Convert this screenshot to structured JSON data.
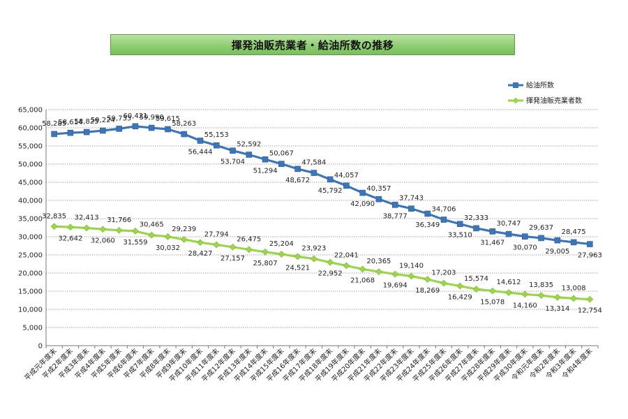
{
  "title": "揮発油販売業者・給油所数の推移",
  "chart_data": {
    "type": "line",
    "title": "揮発油販売業者・給油所数の推移",
    "ylim": [
      0,
      65000
    ],
    "y_ticks": [
      "0",
      "5,000",
      "10,000",
      "15,000",
      "20,000",
      "25,000",
      "30,000",
      "35,000",
      "40,000",
      "45,000",
      "50,000",
      "55,000",
      "60,000",
      "65,000"
    ],
    "grid": true,
    "legend_position": "top-right",
    "categories": [
      "平成元年度末",
      "平成2年度末",
      "平成3年度末",
      "平成4年度末",
      "平成5年度末",
      "平成6年度末",
      "平成7年度末",
      "平成8年度末",
      "平成9年度末",
      "平成10年度末",
      "平成11年度末",
      "平成12年度末",
      "平成13年度末",
      "平成14年度末",
      "平成15年度末",
      "平成16年度末",
      "平成17年度末",
      "平成18年度末",
      "平成19年度末",
      "平成20年度末",
      "平成21年度末",
      "平成22年度末",
      "平成23年度末",
      "平成24年度末",
      "平成25年度末",
      "平成26年度末",
      "平成27年度末",
      "平成28年度末",
      "平成29年度末",
      "平成30年度末",
      "令和元年度末",
      "令和2年度末",
      "令和3年度末",
      "令和4年度末"
    ],
    "series": [
      {
        "name": "給油所数",
        "color": "#3c75b8",
        "marker": "square",
        "values": [
          58285,
          58614,
          58825,
          59224,
          59733,
          60421,
          59990,
          59615,
          58263,
          56444,
          55153,
          53704,
          52592,
          51294,
          50067,
          48672,
          47584,
          45792,
          44057,
          42090,
          40357,
          38777,
          37743,
          36349,
          34706,
          33510,
          32333,
          31467,
          30747,
          30070,
          29637,
          29005,
          28475,
          27963
        ],
        "labels": [
          "58,285",
          "58,614",
          "58,825",
          "59,224",
          "59,733",
          "60,421",
          "59,990",
          "59,615",
          "58,263",
          "56,444",
          "55,153",
          "53,704",
          "52,592",
          "51,294",
          "50,067",
          "48,672",
          "47,584",
          "45,792",
          "44,057",
          "42,090",
          "40,357",
          "38,777",
          "37,743",
          "36,349",
          "34,706",
          "33,510",
          "32,333",
          "31,467",
          "30,747",
          "30,070",
          "29,637",
          "29,005",
          "28,475",
          "27,963"
        ]
      },
      {
        "name": "揮発油販売業者数",
        "color": "#9bd54a",
        "marker": "diamond",
        "values": [
          32835,
          32642,
          32413,
          32060,
          31766,
          31559,
          30465,
          30032,
          29239,
          28427,
          27794,
          27157,
          26475,
          25807,
          25204,
          24521,
          23923,
          22952,
          22041,
          21068,
          20365,
          19694,
          19140,
          18269,
          17203,
          16429,
          15574,
          15078,
          14612,
          14160,
          13835,
          13314,
          13008,
          12754
        ],
        "labels": [
          "32,835",
          "32,642",
          "32,413",
          "32,060",
          "31,766",
          "31,559",
          "30,465",
          "30,032",
          "29,239",
          "28,427",
          "27,794",
          "27,157",
          "26,475",
          "25,807",
          "25,204",
          "24,521",
          "23,923",
          "22,952",
          "22,041",
          "21,068",
          "20,365",
          "19,694",
          "19,140",
          "18,269",
          "17,203",
          "16,429",
          "15,574",
          "15,078",
          "14,612",
          "14,160",
          "13,835",
          "13,314",
          "13,008",
          "12,754"
        ]
      }
    ]
  }
}
